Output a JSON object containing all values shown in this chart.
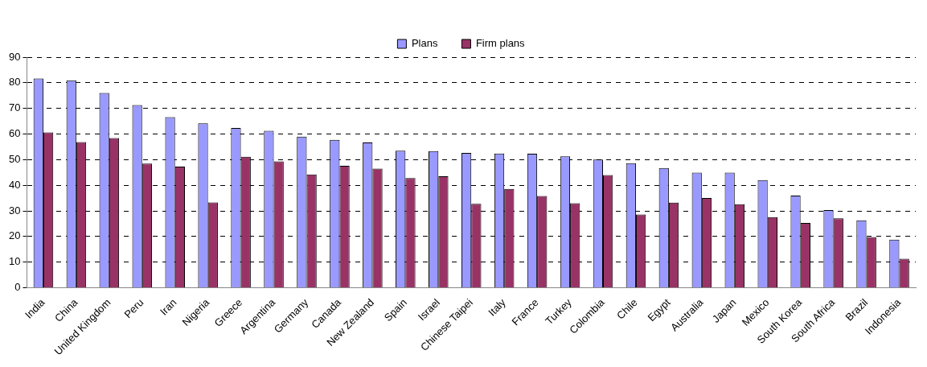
{
  "chart_data": {
    "type": "bar",
    "categories": [
      "India",
      "China",
      "United Kingdom",
      "Peru",
      "Iran",
      "Nigeria",
      "Greece",
      "Argentina",
      "Germany",
      "Canada",
      "New Zealand",
      "Spain",
      "Israel",
      "Chinese Taipei",
      "Italy",
      "France",
      "Turkey",
      "Colombia",
      "Chile",
      "Egypt",
      "Australia",
      "Japan",
      "Mexico",
      "South Korea",
      "South Africa",
      "Brazil",
      "Indonesia"
    ],
    "series": [
      {
        "name": "Plans",
        "color": "#9999ff",
        "values": [
          81.7,
          81,
          76,
          71.3,
          66.6,
          64.2,
          62.4,
          61.3,
          59,
          57.7,
          56.7,
          53.5,
          53.3,
          52.6,
          52.4,
          52.3,
          51.3,
          50,
          48.6,
          46.7,
          44.9,
          44.9,
          42,
          36,
          30.3,
          26.3,
          18.8
        ]
      },
      {
        "name": "Firm plans",
        "color": "#993366",
        "values": [
          60.6,
          56.9,
          58.4,
          48.5,
          47.3,
          33.3,
          51.1,
          49.3,
          44.2,
          47.6,
          46.5,
          42.8,
          43.5,
          32.8,
          38.6,
          35.8,
          33,
          44,
          28.6,
          33.2,
          35,
          32.6,
          27.6,
          25.3,
          27.1,
          19.8,
          11.3
        ]
      }
    ],
    "ylim": [
      0,
      90
    ],
    "yticks": [
      0,
      10,
      20,
      30,
      40,
      50,
      60,
      70,
      80,
      90
    ],
    "grid": "y",
    "legend": "top"
  }
}
